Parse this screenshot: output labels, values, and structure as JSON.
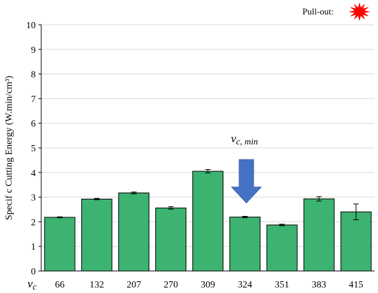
{
  "chart_data": {
    "type": "bar",
    "title": "",
    "xlabel": "vc",
    "xlabel_main": "v",
    "xlabel_sub": "c",
    "ylabel": "Specif c Cutting Energy (W.min/cm³)",
    "categories": [
      "66",
      "132",
      "207",
      "270",
      "309",
      "324",
      "351",
      "383",
      "415"
    ],
    "values": [
      2.18,
      2.92,
      3.17,
      2.56,
      4.05,
      2.19,
      1.87,
      2.93,
      2.4
    ],
    "errors": [
      0.02,
      0.03,
      0.04,
      0.05,
      0.07,
      0.03,
      0.03,
      0.09,
      0.32
    ],
    "ylim": [
      0,
      10
    ],
    "yticks": [
      0,
      1,
      2,
      3,
      4,
      5,
      6,
      7,
      8,
      9,
      10
    ],
    "grid": true,
    "bar_color": "#3cb371",
    "annotation": {
      "text_main": "v",
      "text_sub": "c, min",
      "category": "324",
      "arrow_color": "#4472c4"
    },
    "legend": {
      "label": "Pull-out:",
      "icon": "red-burst-icon",
      "icon_color": "#ff0000",
      "placement": "top-right"
    }
  }
}
